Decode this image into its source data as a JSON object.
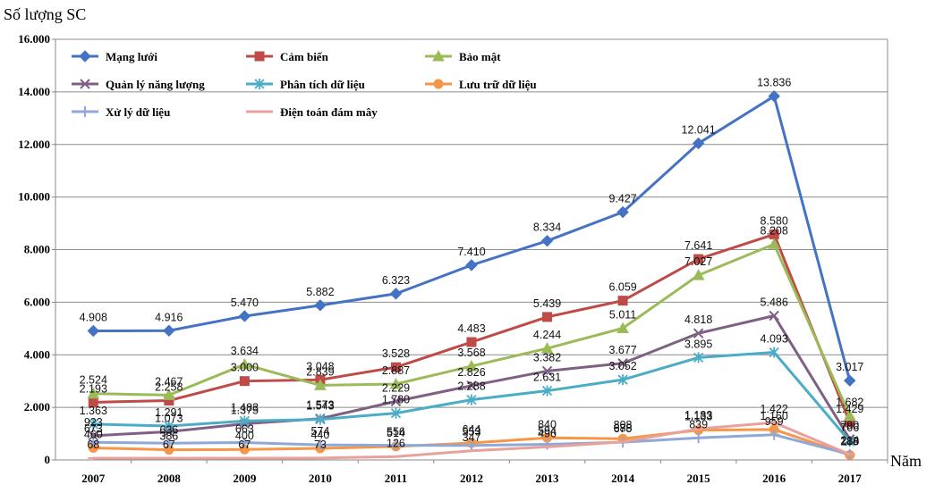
{
  "chart_data": {
    "type": "line",
    "title": "",
    "ylabel": "Số lượng SC",
    "xlabel": "Năm",
    "x": [
      "2007",
      "2008",
      "2009",
      "2010",
      "2011",
      "2012",
      "2013",
      "2014",
      "2015",
      "2016",
      "2017"
    ],
    "ylim": [
      0,
      16000
    ],
    "yticks": [
      0,
      2000,
      4000,
      6000,
      8000,
      10000,
      12000,
      14000,
      16000
    ],
    "ytick_labels": [
      "0",
      "2.000",
      "4.000",
      "6.000",
      "8.000",
      "10.000",
      "12.000",
      "14.000",
      "16.000"
    ],
    "grid": "horizontal",
    "legend_position": "top-left",
    "series": [
      {
        "name": "Mạng lưới",
        "color": "#4472c4",
        "marker": "diamond",
        "values": [
          4908,
          4916,
          5470,
          5882,
          6323,
          7410,
          8334,
          9427,
          12041,
          13836,
          3017
        ],
        "labels": [
          "4.908",
          "4.916",
          "5.470",
          "5.882",
          "6.323",
          "7.410",
          "8.334",
          "9.427",
          "12.041",
          "13.836",
          "3.017"
        ]
      },
      {
        "name": "Cảm biến",
        "color": "#be4b48",
        "marker": "square",
        "values": [
          2193,
          2258,
          3000,
          3048,
          3528,
          4483,
          5439,
          6059,
          7641,
          8580,
          1429
        ],
        "labels": [
          "2.193",
          "2.258",
          "3.000",
          "3.048",
          "3.528",
          "4.483",
          "5.439",
          "6.059",
          "7.641",
          "8.580",
          "1.429"
        ]
      },
      {
        "name": "Bảo mật",
        "color": "#9bbb59",
        "marker": "triangle",
        "values": [
          2524,
          2467,
          3634,
          2839,
          2887,
          3568,
          4244,
          5011,
          7027,
          8208,
          1682
        ],
        "labels": [
          "2.524",
          "2.467",
          "3.634",
          "2.839",
          "2.887",
          "3.568",
          "4.244",
          "5.011",
          "7.027",
          "8.208",
          "1.682"
        ]
      },
      {
        "name": "Quản lý năng lượng",
        "color": "#7f6084",
        "marker": "x",
        "values": [
          923,
          1073,
          1375,
          1573,
          2229,
          2826,
          3382,
          3677,
          4818,
          5486,
          790
        ],
        "labels": [
          "923",
          "1.073",
          "1.375",
          "1.573",
          "2.229",
          "2.826",
          "3.382",
          "3.677",
          "4.818",
          "5.486",
          "790"
        ]
      },
      {
        "name": "Phân tích dữ liệu",
        "color": "#4bacc6",
        "marker": "star",
        "values": [
          1363,
          1291,
          1483,
          1543,
          1780,
          2288,
          2631,
          3052,
          3895,
          4093,
          706
        ],
        "labels": [
          "1.363",
          "1.291",
          "1.483",
          "1.543",
          "1.780",
          "2.288",
          "2.631",
          "3.052",
          "3.895",
          "4.093",
          "706"
        ]
      },
      {
        "name": "Lưu trữ dữ liệu",
        "color": "#f79646",
        "marker": "circle",
        "values": [
          460,
          386,
          400,
          440,
          514,
          644,
          840,
          808,
          1133,
          1160,
          188
        ],
        "labels": [
          "460",
          "386",
          "400",
          "440",
          "514",
          "644",
          "840",
          "808",
          "1.133",
          "1.160",
          "188"
        ]
      },
      {
        "name": "Xử lý dữ liệu",
        "color": "#8fa8d8",
        "marker": "plus",
        "values": [
          673,
          636,
          663,
          574,
          556,
          553,
          594,
          675,
          839,
          959,
          214
        ],
        "labels": [
          "673",
          "636",
          "663",
          "574",
          "556",
          "553",
          "594",
          "675",
          "839",
          "959",
          "214"
        ]
      },
      {
        "name": "Điện toán đám mây",
        "color": "#e8a19c",
        "marker": "line",
        "values": [
          68,
          67,
          67,
          73,
          126,
          347,
          496,
          688,
          1183,
          1422,
          210
        ],
        "labels": [
          "68",
          "67",
          "67",
          "73",
          "126",
          "347",
          "496",
          "688",
          "1.183",
          "1.422",
          "210"
        ]
      }
    ]
  }
}
